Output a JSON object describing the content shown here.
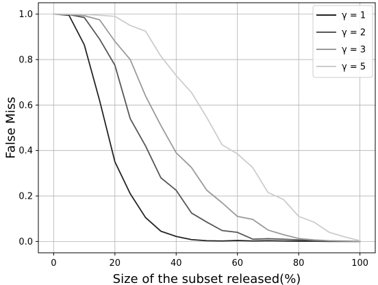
{
  "chart_data": {
    "type": "line",
    "title": "",
    "xlabel": "Size of the subset released(%)",
    "ylabel": "False Miss",
    "xlim": [
      -5,
      105
    ],
    "ylim": [
      -0.05,
      1.05
    ],
    "xticks": [
      0,
      20,
      40,
      60,
      80,
      100
    ],
    "yticks": [
      0.0,
      0.2,
      0.4,
      0.6,
      0.8,
      1.0
    ],
    "xtick_labels": [
      "0",
      "20",
      "40",
      "60",
      "80",
      "100"
    ],
    "ytick_labels": [
      "0.0",
      "0.2",
      "0.4",
      "0.6",
      "0.8",
      "1.0"
    ],
    "grid": true,
    "legend_position": "top-right",
    "x": [
      0,
      5,
      10,
      15,
      20,
      25,
      30,
      35,
      40,
      45,
      50,
      55,
      60,
      65,
      70,
      75,
      80,
      85,
      90,
      95,
      100
    ],
    "series": [
      {
        "name": "γ = 1",
        "color": "#222222",
        "values": [
          1.0,
          0.995,
          0.865,
          0.62,
          0.35,
          0.21,
          0.105,
          0.045,
          0.022,
          0.008,
          0.003,
          0.002,
          0.004,
          0.002,
          0.003,
          0.002,
          0.001,
          0.001,
          0.0,
          0.0,
          0.0
        ]
      },
      {
        "name": "γ = 2",
        "color": "#555555",
        "values": [
          1.0,
          0.998,
          0.985,
          0.89,
          0.775,
          0.54,
          0.42,
          0.28,
          0.225,
          0.125,
          0.085,
          0.048,
          0.04,
          0.01,
          0.012,
          0.01,
          0.007,
          0.003,
          0.002,
          0.001,
          0.0
        ]
      },
      {
        "name": "γ = 3",
        "color": "#999999",
        "values": [
          1.0,
          0.999,
          0.993,
          0.975,
          0.88,
          0.8,
          0.64,
          0.51,
          0.39,
          0.325,
          0.225,
          0.17,
          0.11,
          0.097,
          0.05,
          0.03,
          0.013,
          0.007,
          0.003,
          0.002,
          0.0
        ]
      },
      {
        "name": "γ = 5",
        "color": "#cccccc",
        "values": [
          1.0,
          1.0,
          0.999,
          0.995,
          0.99,
          0.95,
          0.925,
          0.815,
          0.73,
          0.655,
          0.545,
          0.425,
          0.385,
          0.325,
          0.215,
          0.185,
          0.11,
          0.085,
          0.04,
          0.02,
          0.003
        ]
      }
    ]
  }
}
